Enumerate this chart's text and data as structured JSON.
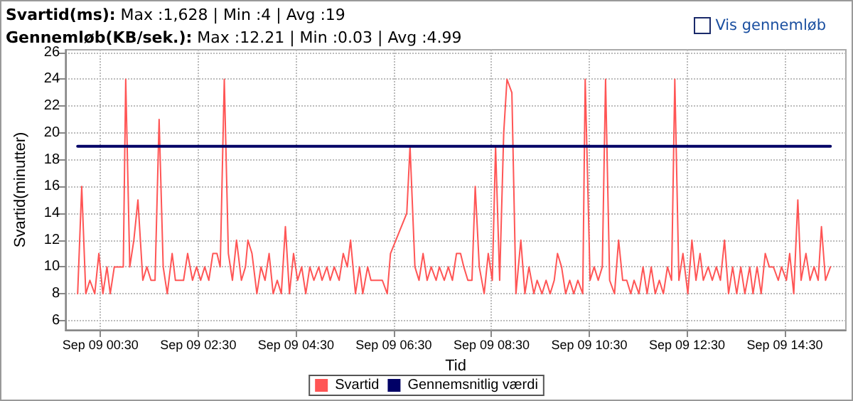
{
  "chart_data": {
    "type": "line",
    "title": "Svartid(ms): Max :1,628 | Min :4 | Avg :19",
    "subtitle": "Gennemløb(KB/sek.): Max :12.21 | Min :0.03 | Avg :4.99",
    "xlabel": "Tid",
    "ylabel": "Svartid(minutter)",
    "annotations": [
      "Vis gennemløb"
    ],
    "xlim": [
      "--09-08T23:47",
      "--09-09T15:45"
    ],
    "ylim": [
      5.3,
      26.2
    ],
    "xticks": [
      {
        "value": "--09-09T00:30",
        "label": "Sep 09 00:30"
      },
      {
        "value": "--09-09T02:30",
        "label": "Sep 09 02:30"
      },
      {
        "value": "--09-09T04:30",
        "label": "Sep 09 04:30"
      },
      {
        "value": "--09-09T06:30",
        "label": "Sep 09 06:30"
      },
      {
        "value": "--09-09T08:30",
        "label": "Sep 09 08:30"
      },
      {
        "value": "--09-09T10:30",
        "label": "Sep 09 10:30"
      },
      {
        "value": "--09-09T12:30",
        "label": "Sep 09 12:30"
      },
      {
        "value": "--09-09T14:30",
        "label": "Sep 09 14:30"
      }
    ],
    "yticks": [
      6,
      8,
      10,
      12,
      14,
      16,
      18,
      20,
      22,
      24,
      26
    ],
    "grid": true,
    "legend": "bottom",
    "marker": "none",
    "line_style": "solid",
    "series": [
      {
        "name": "Svartid",
        "color": "#ff5555",
        "x": [
          "--09-09T00:02",
          "--09-09T00:07",
          "--09-09T00:12",
          "--09-09T00:17",
          "--09-09T00:23",
          "--09-09T00:28",
          "--09-09T00:33",
          "--09-09T00:38",
          "--09-09T00:42",
          "--09-09T00:47",
          "--09-09T00:52",
          "--09-09T00:58",
          "--09-09T01:01",
          "--09-09T01:06",
          "--09-09T01:11",
          "--09-09T01:16",
          "--09-09T01:22",
          "--09-09T01:27",
          "--09-09T01:32",
          "--09-09T01:37",
          "--09-09T01:42",
          "--09-09T01:47",
          "--09-09T01:52",
          "--09-09T01:58",
          "--09-09T02:02",
          "--09-09T02:08",
          "--09-09T02:12",
          "--09-09T02:17",
          "--09-09T02:23",
          "--09-09T02:28",
          "--09-09T02:33",
          "--09-09T02:38",
          "--09-09T02:43",
          "--09-09T02:48",
          "--09-09T02:53",
          "--09-09T02:57",
          "--09-09T03:02",
          "--09-09T03:07",
          "--09-09T03:12",
          "--09-09T03:17",
          "--09-09T03:23",
          "--09-09T03:28",
          "--09-09T03:31",
          "--09-09T03:36",
          "--09-09T03:42",
          "--09-09T03:47",
          "--09-09T03:52",
          "--09-09T03:57",
          "--09-09T04:02",
          "--09-09T04:07",
          "--09-09T04:12",
          "--09-09T04:17",
          "--09-09T04:22",
          "--09-09T04:27",
          "--09-09T04:32",
          "--09-09T04:37",
          "--09-09T04:42",
          "--09-09T04:47",
          "--09-09T04:52",
          "--09-09T04:58",
          "--09-09T05:02",
          "--09-09T05:08",
          "--09-09T05:12",
          "--09-09T05:17",
          "--09-09T05:23",
          "--09-09T05:28",
          "--09-09T05:33",
          "--09-09T05:37",
          "--09-09T05:43",
          "--09-09T05:48",
          "--09-09T05:52",
          "--09-09T05:58",
          "--09-09T06:02",
          "--09-09T06:16",
          "--09-09T06:22",
          "--09-09T06:26",
          "--09-09T06:46",
          "--09-09T06:50",
          "--09-09T06:56",
          "--09-09T07:01",
          "--09-09T07:06",
          "--09-09T07:11",
          "--09-09T07:16",
          "--09-09T07:22",
          "--09-09T07:26",
          "--09-09T07:32",
          "--09-09T07:37",
          "--09-09T07:42",
          "--09-09T07:47",
          "--09-09T07:52",
          "--09-09T07:56",
          "--09-09T08:01",
          "--09-09T08:06",
          "--09-09T08:10",
          "--09-09T08:15",
          "--09-09T08:21",
          "--09-09T08:26",
          "--09-09T08:31",
          "--09-09T08:35",
          "--09-09T08:40",
          "--09-09T08:45",
          "--09-09T08:49",
          "--09-09T08:55",
          "--09-09T09:00",
          "--09-09T09:06",
          "--09-09T09:11",
          "--09-09T09:16",
          "--09-09T09:22",
          "--09-09T09:26",
          "--09-09T09:32",
          "--09-09T09:37",
          "--09-09T09:42",
          "--09-09T09:47",
          "--09-09T09:51",
          "--09-09T09:56",
          "--09-09T10:01",
          "--09-09T10:06",
          "--09-09T10:11",
          "--09-09T10:16",
          "--09-09T10:22",
          "--09-09T10:25",
          "--09-09T10:31",
          "--09-09T10:36",
          "--09-09T10:41",
          "--09-09T10:46",
          "--09-09T10:50",
          "--09-09T10:55",
          "--09-09T11:01",
          "--09-09T11:06",
          "--09-09T11:11",
          "--09-09T11:16",
          "--09-09T11:21",
          "--09-09T11:25",
          "--09-09T11:31",
          "--09-09T11:36",
          "--09-09T11:41",
          "--09-09T11:46",
          "--09-09T11:51",
          "--09-09T11:56",
          "--09-09T12:01",
          "--09-09T12:06",
          "--09-09T12:11",
          "--09-09T12:15",
          "--09-09T12:20",
          "--09-09T12:25",
          "--09-09T12:31",
          "--09-09T12:36",
          "--09-09T12:41",
          "--09-09T12:46",
          "--09-09T12:50",
          "--09-09T12:56",
          "--09-09T13:01",
          "--09-09T13:06",
          "--09-09T13:11",
          "--09-09T13:16",
          "--09-09T13:21",
          "--09-09T13:26",
          "--09-09T13:31",
          "--09-09T13:36",
          "--09-09T13:41",
          "--09-09T13:47",
          "--09-09T13:51",
          "--09-09T13:56",
          "--09-09T14:01",
          "--09-09T14:06",
          "--09-09T14:11",
          "--09-09T14:16",
          "--09-09T14:22",
          "--09-09T14:26",
          "--09-09T14:32",
          "--09-09T14:36",
          "--09-09T14:41",
          "--09-09T14:46",
          "--09-09T14:50",
          "--09-09T14:56",
          "--09-09T15:01",
          "--09-09T15:06",
          "--09-09T15:11",
          "--09-09T15:15",
          "--09-09T15:20",
          "--09-09T15:26"
        ],
        "values": [
          8,
          16,
          8,
          9,
          8,
          11,
          8,
          10,
          8,
          10,
          10,
          10,
          24,
          10,
          12,
          15,
          9,
          10,
          9,
          9,
          21,
          10,
          8,
          11,
          9,
          9,
          9,
          11,
          9,
          10,
          9,
          10,
          9,
          11,
          11,
          10,
          24,
          11,
          9,
          12,
          9,
          10,
          12,
          11,
          8,
          10,
          9,
          11,
          8,
          9,
          8,
          13,
          8,
          11,
          9,
          10,
          8,
          10,
          9,
          10,
          9,
          10,
          9,
          10,
          9,
          11,
          10,
          12,
          8,
          10,
          8,
          10,
          9,
          9,
          8,
          11,
          14,
          19,
          10,
          9,
          11,
          9,
          10,
          9,
          10,
          9,
          10,
          9,
          11,
          11,
          10,
          9,
          9,
          16,
          10,
          8,
          11,
          9,
          19,
          9,
          20,
          24,
          23,
          8,
          12,
          8,
          10,
          8,
          9,
          8,
          9,
          8,
          9,
          11,
          10,
          8,
          9,
          8,
          9,
          8,
          24,
          9,
          10,
          9,
          10,
          24,
          9,
          8,
          12,
          9,
          9,
          8,
          9,
          8,
          10,
          8,
          10,
          8,
          9,
          8,
          10,
          9,
          24,
          9,
          11,
          8,
          12,
          9,
          11,
          9,
          10,
          9,
          10,
          9,
          12,
          8,
          10,
          8,
          10,
          8,
          10,
          8,
          10,
          8,
          11,
          10,
          10,
          9,
          10,
          9,
          11,
          8,
          15,
          9,
          11,
          9,
          10,
          9,
          13,
          9,
          10
        ]
      },
      {
        "name": "Gennemsnitlig værdi",
        "color": "#000066",
        "x": [
          "--09-09T00:02",
          "--09-09T15:26"
        ],
        "values": [
          19,
          19
        ]
      }
    ]
  }
}
